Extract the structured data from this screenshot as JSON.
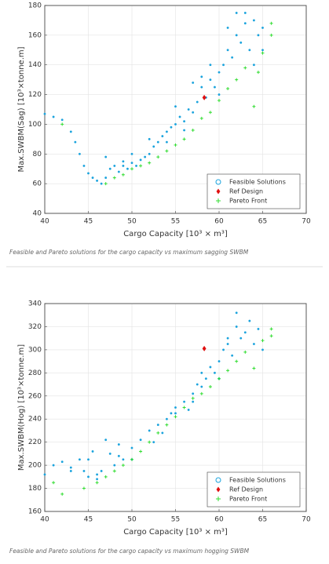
{
  "chart_data": [
    {
      "type": "scatter",
      "xlabel": "Cargo Capacity [10³ × m³]",
      "ylabel": "Max.SWBM(Sag) [10³×tonne.m]",
      "caption": "Feasible and Pareto solutions for the cargo capacity vs maximum sagging SWBM",
      "xlim": [
        40,
        70
      ],
      "xticks": [
        40,
        45,
        50,
        55,
        60,
        65,
        70
      ],
      "ylim": [
        40,
        180
      ],
      "yticks": [
        40,
        60,
        80,
        100,
        120,
        140,
        160,
        180
      ],
      "grid": true,
      "legend": "lower right",
      "series": [
        {
          "name": "Feasible Solutions",
          "color": "#1aa3dd",
          "marker": "circle",
          "x": [
            40,
            41,
            42,
            43,
            43.5,
            44,
            44.5,
            45,
            45.5,
            46,
            46.5,
            47,
            47.5,
            48,
            48.5,
            49,
            49.5,
            50,
            50.5,
            51,
            51.5,
            52,
            52.5,
            53,
            53.5,
            54,
            54.5,
            55,
            55.5,
            56,
            56.5,
            57,
            57.5,
            58,
            58.5,
            59,
            59.5,
            60,
            60.5,
            61,
            61.5,
            62,
            62.5,
            63,
            63.5,
            64,
            64.5,
            65,
            47,
            52,
            55,
            57,
            59,
            60,
            61,
            62,
            63,
            64,
            65,
            58,
            56,
            54,
            50,
            49
          ],
          "y": [
            107,
            105,
            103,
            95,
            88,
            80,
            72,
            67,
            64,
            62,
            60,
            64,
            70,
            72,
            68,
            72,
            70,
            74,
            72,
            76,
            78,
            80,
            85,
            88,
            92,
            95,
            98,
            100,
            105,
            102,
            110,
            108,
            115,
            125,
            118,
            130,
            125,
            135,
            140,
            150,
            145,
            160,
            155,
            168,
            150,
            170,
            160,
            165,
            78,
            90,
            112,
            128,
            140,
            120,
            165,
            175,
            175,
            140,
            150,
            132,
            96,
            88,
            80,
            75
          ]
        },
        {
          "name": "Ref Design",
          "color": "#e01010",
          "marker": "diamond",
          "x": [
            58.3
          ],
          "y": [
            118
          ]
        },
        {
          "name": "Pareto Front",
          "color": "#33dd33",
          "marker": "plus",
          "x": [
            42,
            47,
            48,
            49,
            50,
            51,
            52,
            53,
            54,
            55,
            56,
            57,
            58,
            59,
            60,
            61,
            62,
            63,
            64,
            65,
            66,
            66,
            64.5
          ],
          "y": [
            100,
            60,
            64,
            66,
            70,
            72,
            74,
            78,
            82,
            86,
            90,
            96,
            104,
            108,
            116,
            124,
            130,
            138,
            112,
            148,
            160,
            168,
            135
          ]
        }
      ]
    },
    {
      "type": "scatter",
      "xlabel": "Cargo Capacity [10³ × m³]",
      "ylabel": "Max.SWBM(Hog) [10³×tonne.m]",
      "caption": "Feasible and Pareto solutions for the cargo capacity vs maximum hogging SWBM",
      "xlim": [
        40,
        70
      ],
      "xticks": [
        40,
        45,
        50,
        55,
        60,
        65,
        70
      ],
      "ylim": [
        160,
        340
      ],
      "yticks": [
        160,
        180,
        200,
        220,
        240,
        260,
        280,
        300,
        320,
        340
      ],
      "grid": true,
      "legend": "lower right",
      "series": [
        {
          "name": "Feasible Solutions",
          "color": "#1aa3dd",
          "marker": "circle",
          "x": [
            40,
            41,
            42,
            43,
            44,
            44.5,
            45,
            45.5,
            46,
            46.5,
            47,
            47.5,
            48,
            48.5,
            49,
            50,
            51,
            52,
            52.5,
            53,
            54,
            54.5,
            55,
            56,
            56.5,
            57,
            57.5,
            58,
            58.5,
            59,
            59.5,
            60,
            60.5,
            61,
            61.5,
            62,
            62.5,
            63,
            63.5,
            64,
            64.5,
            65,
            62,
            45,
            50,
            55,
            60,
            46,
            43,
            48.5,
            53.5,
            57,
            58,
            61
          ],
          "y": [
            192,
            200,
            203,
            198,
            205,
            195,
            190,
            212,
            192,
            195,
            222,
            210,
            200,
            218,
            205,
            215,
            222,
            230,
            220,
            235,
            240,
            245,
            250,
            255,
            248,
            262,
            270,
            268,
            275,
            285,
            280,
            290,
            300,
            305,
            295,
            320,
            310,
            315,
            325,
            305,
            318,
            300,
            332,
            205,
            205,
            245,
            275,
            188,
            195,
            208,
            228,
            255,
            280,
            310
          ]
        },
        {
          "name": "Ref Design",
          "color": "#e01010",
          "marker": "diamond",
          "x": [
            58.3
          ],
          "y": [
            301
          ]
        },
        {
          "name": "Pareto Front",
          "color": "#33dd33",
          "marker": "plus",
          "x": [
            42,
            44.5,
            46,
            47,
            48,
            49,
            50,
            51,
            52,
            53,
            54,
            55,
            56,
            57,
            58,
            59,
            60,
            61,
            62,
            63,
            64,
            65,
            66,
            66,
            41
          ],
          "y": [
            175,
            180,
            185,
            190,
            195,
            200,
            205,
            212,
            220,
            228,
            235,
            242,
            250,
            258,
            262,
            268,
            275,
            282,
            290,
            298,
            284,
            308,
            318,
            312,
            185
          ]
        }
      ]
    }
  ]
}
